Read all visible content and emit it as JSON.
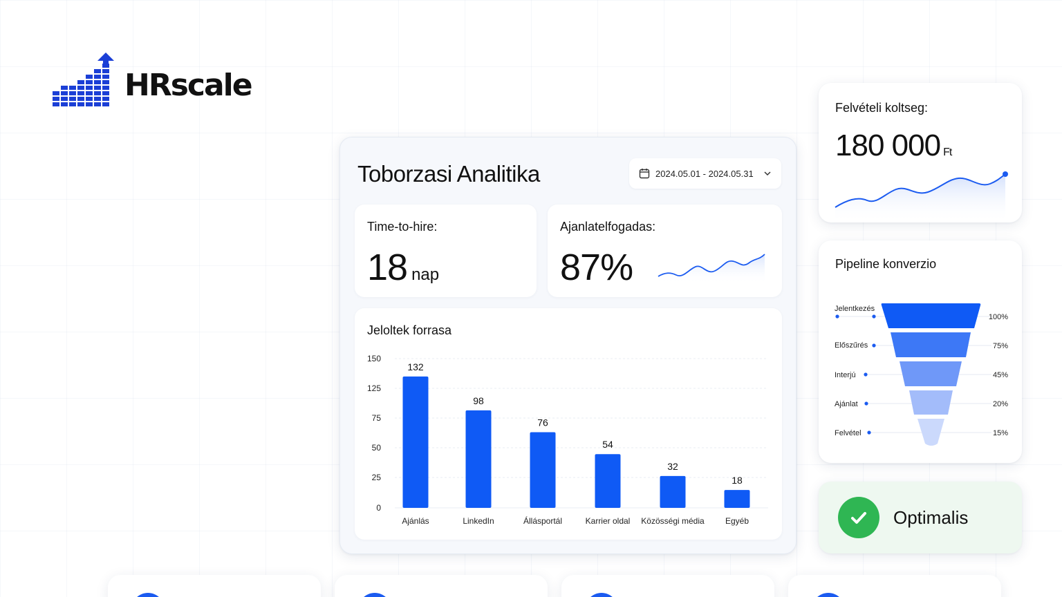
{
  "brand": {
    "name": "HRscale",
    "accent": "#1b3fd6"
  },
  "main": {
    "title": "Toborzasi Analitika",
    "date_range": "2024.05.01 - 2024.05.31",
    "time_to_hire": {
      "label": "Time-to-hire:",
      "value": "18",
      "unit": "nap"
    },
    "offer_acceptance": {
      "label": "Ajanlatelfogadas:",
      "value": "87%"
    },
    "sources_title": "Jeloltek forrasa"
  },
  "chart_data": {
    "type": "bar",
    "title": "Jeloltek forrasa",
    "categories": [
      "Ajánlás",
      "LinkedIn",
      "Állásportál",
      "Karrier oldal",
      "Közösségi média",
      "Egyéb"
    ],
    "values": [
      132,
      98,
      76,
      54,
      32,
      18
    ],
    "y_ticks": [
      "0",
      "25",
      "50",
      "75",
      "125",
      "150"
    ],
    "bar_color": "#0f5af5",
    "grid": true
  },
  "cost": {
    "label": "Felvételi koltseg:",
    "value": "180 000",
    "unit": "Ft"
  },
  "pipeline": {
    "title": "Pipeline konverzio",
    "stages": [
      {
        "label": "Jelentkezés",
        "percent": "100%",
        "color": "#0f5af5"
      },
      {
        "label": "Előszűrés",
        "percent": "75%",
        "color": "#3d78f6"
      },
      {
        "label": "Interjú",
        "percent": "45%",
        "color": "#6f98f8"
      },
      {
        "label": "Ajánlat",
        "percent": "20%",
        "color": "#a3bcfa"
      },
      {
        "label": "Felvétel",
        "percent": "15%",
        "color": "#cbd9fc"
      }
    ]
  },
  "status": {
    "label": "Optimalis",
    "color": "#2fb653"
  }
}
